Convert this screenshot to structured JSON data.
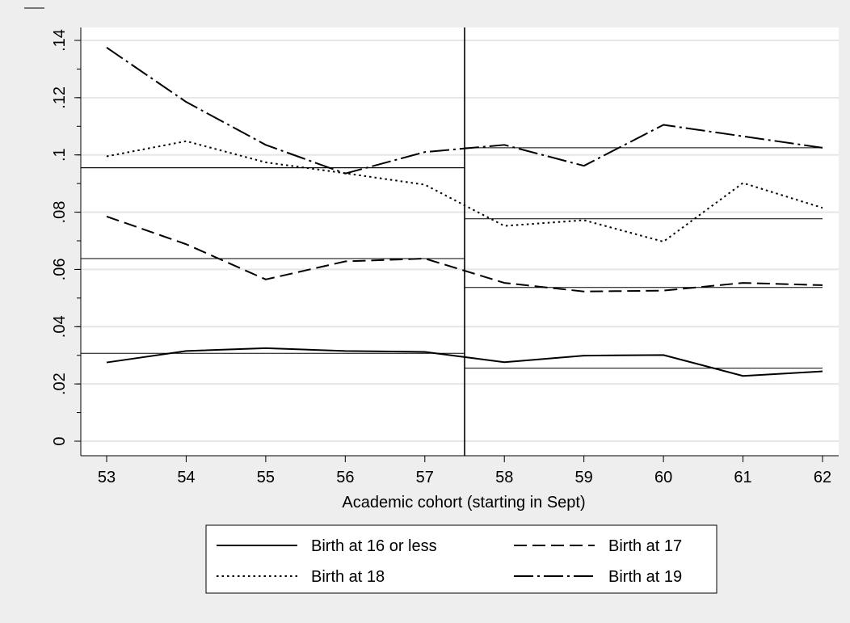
{
  "chart_data": {
    "type": "line",
    "xlabel": "Academic cohort (starting in Sept)",
    "ylabel": "",
    "x": [
      53,
      54,
      55,
      56,
      57,
      58,
      59,
      60,
      61,
      62
    ],
    "x_ticks": [
      "53",
      "54",
      "55",
      "56",
      "57",
      "58",
      "59",
      "60",
      "61",
      "62"
    ],
    "y_ticks": [
      "0",
      ".02",
      ".04",
      ".06",
      ".08",
      ".1",
      ".12",
      ".14"
    ],
    "xlim": [
      53,
      62
    ],
    "ylim": [
      0,
      0.14
    ],
    "grid": true,
    "cutoff_x": 57.5,
    "legend_position": "bottom",
    "series": [
      {
        "name": "Birth at 16 or less",
        "style": "solid",
        "values": [
          0.0275,
          0.0315,
          0.0325,
          0.0315,
          0.0312,
          0.0276,
          0.0299,
          0.0301,
          0.0228,
          0.0244
        ],
        "fit_pre": 0.0307,
        "fit_post": 0.0255
      },
      {
        "name": "Birth at 17",
        "style": "dashed",
        "values": [
          0.0785,
          0.0688,
          0.0565,
          0.0628,
          0.0638,
          0.0553,
          0.0523,
          0.0526,
          0.0553,
          0.0545
        ],
        "fit_pre": 0.0638,
        "fit_post": 0.0537
      },
      {
        "name": "Birth at 18",
        "style": "dotted",
        "values": [
          0.0995,
          0.1048,
          0.0974,
          0.0936,
          0.0896,
          0.0752,
          0.0772,
          0.0697,
          0.0902,
          0.0815
        ],
        "fit_pre": 0.0955,
        "fit_post": 0.0777
      },
      {
        "name": "Birth at 19",
        "style": "dash-dot",
        "values": [
          0.1375,
          0.1185,
          0.1035,
          0.0935,
          0.101,
          0.1035,
          0.0962,
          0.1105,
          0.1065,
          0.1025
        ],
        "fit_pre": 0.0955,
        "fit_post": 0.1025
      }
    ]
  }
}
